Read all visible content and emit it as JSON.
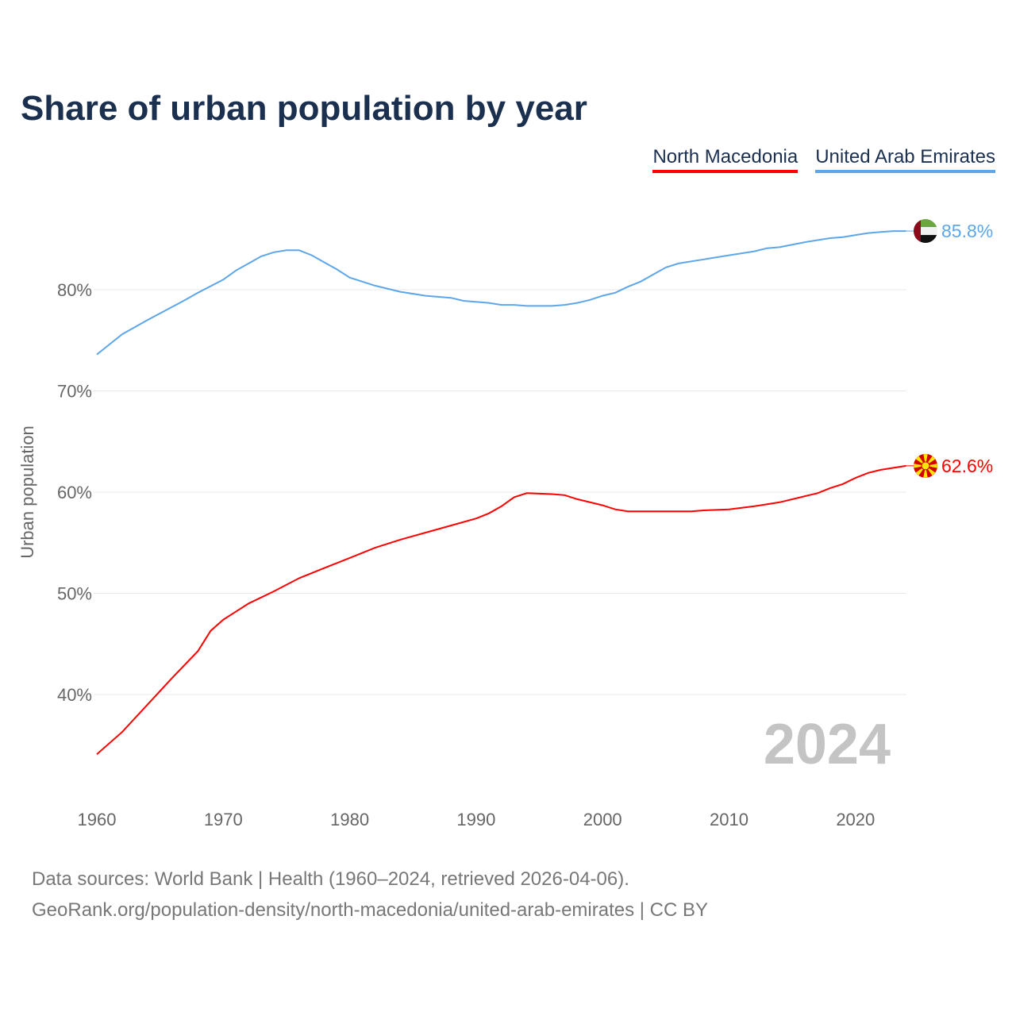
{
  "chart_data": {
    "type": "line",
    "title": "Share of urban population by year",
    "xlabel": "",
    "ylabel": "Urban population",
    "xlim": [
      1960,
      2024
    ],
    "ylim": [
      30,
      90
    ],
    "x_ticks": [
      "1960",
      "1970",
      "1980",
      "1990",
      "2000",
      "2010",
      "2020"
    ],
    "y_ticks": [
      {
        "value": 40,
        "label": "40%"
      },
      {
        "value": 50,
        "label": "50%"
      },
      {
        "value": 60,
        "label": "60%"
      },
      {
        "value": 70,
        "label": "70%"
      },
      {
        "value": 80,
        "label": "80%"
      }
    ],
    "grid": true,
    "legend_placement": "top-right",
    "year_annotation": "2024",
    "series": [
      {
        "name": "North Macedonia",
        "color": "#ff0000",
        "end_label": "62.6%",
        "flag": "north-macedonia-flag",
        "points": [
          [
            1960,
            34.1
          ],
          [
            1962,
            36.3
          ],
          [
            1964,
            39.0
          ],
          [
            1966,
            41.7
          ],
          [
            1968,
            44.3
          ],
          [
            1969,
            46.3
          ],
          [
            1970,
            47.4
          ],
          [
            1972,
            49.0
          ],
          [
            1974,
            50.2
          ],
          [
            1976,
            51.5
          ],
          [
            1978,
            52.5
          ],
          [
            1980,
            53.5
          ],
          [
            1982,
            54.5
          ],
          [
            1984,
            55.3
          ],
          [
            1986,
            56.0
          ],
          [
            1988,
            56.7
          ],
          [
            1990,
            57.4
          ],
          [
            1991,
            57.9
          ],
          [
            1992,
            58.6
          ],
          [
            1993,
            59.5
          ],
          [
            1994,
            59.9
          ],
          [
            1996,
            59.8
          ],
          [
            1997,
            59.7
          ],
          [
            1998,
            59.3
          ],
          [
            2000,
            58.7
          ],
          [
            2001,
            58.3
          ],
          [
            2002,
            58.1
          ],
          [
            2004,
            58.1
          ],
          [
            2007,
            58.1
          ],
          [
            2008,
            58.2
          ],
          [
            2010,
            58.3
          ],
          [
            2012,
            58.6
          ],
          [
            2014,
            59.0
          ],
          [
            2016,
            59.6
          ],
          [
            2017,
            59.9
          ],
          [
            2018,
            60.4
          ],
          [
            2019,
            60.8
          ],
          [
            2020,
            61.4
          ],
          [
            2021,
            61.9
          ],
          [
            2022,
            62.2
          ],
          [
            2024,
            62.6
          ]
        ]
      },
      {
        "name": "United Arab Emirates",
        "color": "#5ea6ea",
        "end_label": "85.8%",
        "flag": "uae-flag",
        "points": [
          [
            1960,
            73.6
          ],
          [
            1962,
            75.6
          ],
          [
            1964,
            77.0
          ],
          [
            1967,
            79.0
          ],
          [
            1968,
            79.7
          ],
          [
            1970,
            81.0
          ],
          [
            1971,
            81.9
          ],
          [
            1972,
            82.6
          ],
          [
            1973,
            83.3
          ],
          [
            1974,
            83.7
          ],
          [
            1975,
            83.9
          ],
          [
            1976,
            83.9
          ],
          [
            1977,
            83.4
          ],
          [
            1978,
            82.7
          ],
          [
            1979,
            82.0
          ],
          [
            1980,
            81.2
          ],
          [
            1982,
            80.4
          ],
          [
            1984,
            79.8
          ],
          [
            1986,
            79.4
          ],
          [
            1988,
            79.2
          ],
          [
            1989,
            78.9
          ],
          [
            1991,
            78.7
          ],
          [
            1992,
            78.5
          ],
          [
            1993,
            78.5
          ],
          [
            1994,
            78.4
          ],
          [
            1996,
            78.4
          ],
          [
            1997,
            78.5
          ],
          [
            1998,
            78.7
          ],
          [
            1999,
            79.0
          ],
          [
            2000,
            79.4
          ],
          [
            2001,
            79.7
          ],
          [
            2002,
            80.3
          ],
          [
            2003,
            80.8
          ],
          [
            2004,
            81.5
          ],
          [
            2005,
            82.2
          ],
          [
            2006,
            82.6
          ],
          [
            2008,
            83.0
          ],
          [
            2010,
            83.4
          ],
          [
            2012,
            83.8
          ],
          [
            2013,
            84.1
          ],
          [
            2014,
            84.2
          ],
          [
            2016,
            84.7
          ],
          [
            2018,
            85.1
          ],
          [
            2019,
            85.2
          ],
          [
            2020,
            85.4
          ],
          [
            2021,
            85.6
          ],
          [
            2022,
            85.7
          ],
          [
            2023,
            85.8
          ],
          [
            2024,
            85.8
          ]
        ]
      }
    ]
  },
  "footer": {
    "line1": "Data sources: World Bank | Health (1960–2024, retrieved 2026-04-06).",
    "line2": "GeoRank.org/population-density/north-macedonia/united-arab-emirates | CC BY"
  }
}
